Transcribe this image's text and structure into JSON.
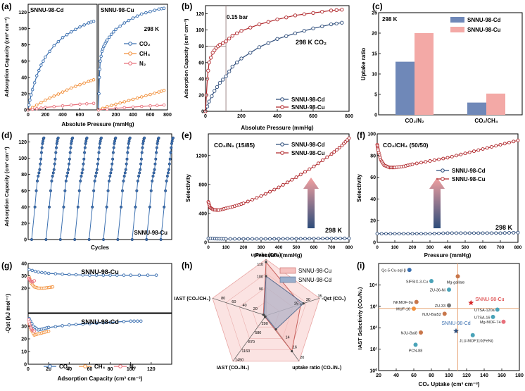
{
  "colors": {
    "cd": "#2e4d7b",
    "cu": "#b0272b",
    "ch4": "#f2913d",
    "n2": "#e8707b",
    "co2": "#3a6fb0",
    "cd_bar": "#6f88b8",
    "cu_bar": "#f3a9a6",
    "cd_fill": "#9aaecc",
    "cu_fill": "#f5c2c0",
    "vline": "#a08888",
    "arrow_top": "#f2a0a0",
    "arrow_bot": "#2e4d7b"
  },
  "chart_data": [
    {
      "id": "a",
      "type": "line",
      "panel_label": "(a)",
      "ylabel": "Adsorption Capacity (cm³ cm⁻³)",
      "xlabel": "Absolute Pressure (mmHg)",
      "temp": "298 K",
      "subplots": [
        {
          "title": "SNNU-98-Cd",
          "xlim": [
            0,
            800
          ],
          "ylim": [
            0,
            130
          ],
          "xticks": [
            0,
            200,
            400,
            600
          ],
          "yticks": [
            0,
            20,
            40,
            60,
            80,
            100,
            120
          ],
          "series": [
            {
              "name": "CO₂",
              "k": "co2",
              "x": [
                0,
                20,
                50,
                100,
                150,
                200,
                300,
                400,
                500,
                600,
                700,
                760
              ],
              "y": [
                0,
                12,
                25,
                42,
                55,
                65,
                79,
                89,
                96,
                102,
                107,
                109
              ]
            },
            {
              "name": "CH₄",
              "k": "ch4",
              "x": [
                0,
                100,
                200,
                300,
                400,
                500,
                600,
                700,
                760
              ],
              "y": [
                0,
                6,
                12,
                17,
                22,
                27,
                31,
                35,
                37
              ]
            },
            {
              "name": "N₂",
              "k": "n2",
              "x": [
                0,
                100,
                200,
                400,
                600,
                760
              ],
              "y": [
                0,
                1.5,
                3,
                5,
                7,
                8
              ]
            }
          ]
        },
        {
          "title": "SNNU-98-Cu",
          "xlim": [
            0,
            800
          ],
          "ylim": [
            0,
            130
          ],
          "xticks": [
            0,
            200,
            400,
            600,
            800
          ],
          "yticks": [],
          "series": [
            {
              "name": "CO₂",
              "k": "co2",
              "x": [
                0,
                10,
                20,
                40,
                60,
                80,
                100,
                150,
                200,
                300,
                400,
                500,
                600,
                700,
                760
              ],
              "y": [
                0,
                40,
                60,
                72,
                78,
                82,
                86,
                93,
                99,
                107,
                113,
                118,
                121,
                124,
                125
              ]
            },
            {
              "name": "CH₄",
              "k": "ch4",
              "x": [
                0,
                100,
                200,
                300,
                400,
                500,
                600,
                700,
                760
              ],
              "y": [
                0,
                4,
                7,
                10,
                13,
                16,
                19,
                22,
                24
              ]
            },
            {
              "name": "N₂",
              "k": "n2",
              "x": [
                0,
                200,
                400,
                600,
                760
              ],
              "y": [
                0,
                2,
                3.5,
                5,
                6
              ]
            }
          ]
        }
      ],
      "legend": [
        "CO₂",
        "CH₄",
        "N₂"
      ]
    },
    {
      "id": "b",
      "type": "line",
      "panel_label": "(b)",
      "ylabel": "Adsorption Capacity (cm³ cm⁻³)",
      "xlabel": "Absolute Pressure (mmHg)",
      "xlim": [
        0,
        800
      ],
      "ylim": [
        0,
        130
      ],
      "xticks": [
        0,
        200,
        400,
        600,
        800
      ],
      "yticks": [
        0,
        20,
        40,
        60,
        80,
        100,
        120
      ],
      "annotation": "0.15 bar",
      "temp": "298 K",
      "gas": "CO₂",
      "vline_x": 114,
      "hline_y": 80,
      "series": [
        {
          "name": "SNNU-98-Cd",
          "k": "cd",
          "x": [
            0,
            20,
            50,
            80,
            114,
            150,
            200,
            300,
            400,
            500,
            600,
            700,
            760
          ],
          "y": [
            0,
            12,
            25,
            35,
            43,
            55,
            65,
            79,
            89,
            96,
            102,
            107,
            109
          ]
        },
        {
          "name": "SNNU-98-Cu",
          "k": "cu",
          "x": [
            0,
            10,
            20,
            40,
            60,
            80,
            114,
            150,
            200,
            300,
            400,
            500,
            600,
            700,
            760
          ],
          "y": [
            0,
            40,
            60,
            72,
            78,
            82,
            86,
            93,
            99,
            107,
            113,
            118,
            121,
            124,
            125
          ]
        }
      ]
    },
    {
      "id": "c",
      "type": "bar",
      "panel_label": "(c)",
      "ylabel": "Uptake ratio",
      "temp": "298 K",
      "categories": [
        "CO₂/N₂",
        "CO₂/CH₄"
      ],
      "ylim": [
        0,
        25
      ],
      "yticks": [
        0,
        5,
        10,
        15,
        20,
        25
      ],
      "series": [
        {
          "name": "SNNU-98-Cd",
          "k": "cd_bar",
          "values": [
            13,
            3
          ]
        },
        {
          "name": "SNNU-98-Cu",
          "k": "cu_bar",
          "values": [
            20,
            5.2
          ]
        }
      ]
    },
    {
      "id": "d",
      "type": "line",
      "panel_label": "(d)",
      "ylabel": "Adsorption Capacity (cm³ cm⁻³)",
      "xlabel": "Cycles",
      "label": "SNNU-98-Cu",
      "ylim": [
        0,
        130
      ],
      "yticks": [
        0,
        20,
        40,
        60,
        80,
        100,
        120
      ],
      "cycles": 10,
      "cycle_profile": [
        0,
        40,
        60,
        72,
        78,
        82,
        86,
        93,
        99,
        107,
        113,
        118,
        121,
        124,
        125
      ]
    },
    {
      "id": "e",
      "type": "line",
      "panel_label": "(e)",
      "ylabel": "Selectivity",
      "xlabel": "Pressure (mmHg)",
      "title": "CO₂/N₂ (15/85)",
      "temp": "298 K",
      "xlim": [
        0,
        800
      ],
      "ylim": [
        0,
        1500
      ],
      "xticks": [
        0,
        100,
        200,
        300,
        400,
        500,
        600,
        700,
        800
      ],
      "yticks": [
        0,
        400,
        800,
        1200
      ],
      "series": [
        {
          "name": "SNNU-98-Cd",
          "k": "cd",
          "x": [
            0,
            50,
            100,
            200,
            300,
            400,
            500,
            600,
            700,
            800
          ],
          "y": [
            55,
            50,
            48,
            48,
            48,
            49,
            50,
            52,
            54,
            55
          ]
        },
        {
          "name": "SNNU-98-Cu",
          "k": "cu",
          "x": [
            0,
            10,
            30,
            60,
            100,
            150,
            200,
            300,
            400,
            500,
            600,
            700,
            760,
            800
          ],
          "y": [
            560,
            480,
            450,
            445,
            470,
            500,
            540,
            640,
            760,
            900,
            1050,
            1220,
            1340,
            1440
          ]
        }
      ]
    },
    {
      "id": "f",
      "type": "line",
      "panel_label": "(f)",
      "ylabel": "Selectivity",
      "xlabel": "Pressure (mmHg)",
      "title": "CO₂/CH₄ (50/50)",
      "temp": "298 K",
      "xlim": [
        0,
        800
      ],
      "ylim": [
        0,
        100
      ],
      "xticks": [
        0,
        100,
        200,
        300,
        400,
        500,
        600,
        700,
        800
      ],
      "yticks": [
        0,
        20,
        40,
        60,
        80,
        100
      ],
      "series": [
        {
          "name": "SNNU-98-Cd",
          "k": "cd",
          "x": [
            0,
            100,
            200,
            300,
            400,
            500,
            600,
            700,
            800
          ],
          "y": [
            8,
            8,
            8,
            8,
            8.5,
            8.5,
            8.5,
            8.5,
            9
          ]
        },
        {
          "name": "SNNU-98-Cu",
          "k": "cu",
          "x": [
            0,
            5,
            20,
            40,
            70,
            100,
            150,
            200,
            300,
            400,
            500,
            600,
            700,
            800
          ],
          "y": [
            90,
            85,
            76,
            71,
            69,
            69,
            70,
            72,
            75,
            78,
            82,
            86,
            90,
            94
          ]
        }
      ]
    },
    {
      "id": "g",
      "type": "line",
      "panel_label": "(g)",
      "ylabel": "-Qst (kJ mol⁻¹)",
      "xlabel": "Adsorption Capacity (cm³ cm⁻³)",
      "xlim": [
        0,
        140
      ],
      "ylim": [
        0,
        40
      ],
      "xticks": [
        0,
        20,
        40,
        60,
        80,
        100,
        120
      ],
      "yticks": [
        0,
        10,
        20,
        30,
        40
      ],
      "legend": [
        "CO₂",
        "CH₄",
        "N₂"
      ],
      "subplots": [
        {
          "title": "SNNU-98-Cu",
          "series": [
            {
              "name": "CO₂",
              "k": "co2",
              "x": [
                1,
                10,
                20,
                40,
                60,
                80,
                100,
                125
              ],
              "y": [
                35,
                33,
                32,
                31,
                30.5,
                30.5,
                30.5,
                30.5
              ]
            },
            {
              "name": "CH₄",
              "k": "ch4",
              "x": [
                1,
                3,
                6,
                10,
                15,
                20,
                24
              ],
              "y": [
                29,
                24,
                21,
                20,
                20,
                20.5,
                21
              ]
            },
            {
              "name": "N₂",
              "k": "n2",
              "x": [
                0.5,
                2,
                4,
                6
              ],
              "y": [
                28,
                26,
                25,
                26
              ]
            }
          ]
        },
        {
          "title": "SNNU-98-Cd",
          "series": [
            {
              "name": "CO₂",
              "k": "co2",
              "x": [
                1,
                5,
                10,
                15,
                20,
                40,
                60,
                80,
                100,
                110
              ],
              "y": [
                36,
                30,
                27,
                28,
                29,
                31,
                32,
                33,
                34,
                34
              ]
            },
            {
              "name": "CH₄",
              "k": "ch4",
              "x": [
                1,
                3,
                6,
                10,
                15,
                20
              ],
              "y": [
                32,
                27,
                23,
                24,
                25,
                26
              ]
            },
            {
              "name": "N₂",
              "k": "n2",
              "x": [
                0.5,
                2,
                4,
                6
              ],
              "y": [
                35,
                30,
                27,
                26
              ]
            }
          ]
        }
      ]
    },
    {
      "id": "h",
      "type": "radar",
      "panel_label": "(h)",
      "axes": [
        "uptake (CO₂)",
        "-Qst (CO₂)",
        "uptake ratio (CO₂/N₂)",
        "IAST (CO₂/N₂)",
        "IAST (CO₂/CH₄)"
      ],
      "scales": {
        "uptake": [
          90,
          100,
          110
        ],
        "qst": [
          25,
          30,
          35
        ],
        "ratio": [
          14,
          16,
          20
        ],
        "iast_n2": [
          290,
          580,
          870,
          1160,
          1450
        ],
        "iast_ch4": [
          20,
          40,
          60,
          80
        ]
      },
      "legend": [
        "SNNU-98-Cu",
        "SNNU-98-Cd"
      ],
      "series": [
        {
          "name": "SNNU-98-Cu",
          "k": "cu_fill",
          "values": [
            0.95,
            0.65,
            0.78,
            0.03,
            0.05
          ]
        },
        {
          "name": "SNNU-98-Cd",
          "k": "cd_fill",
          "values": [
            0.7,
            0.7,
            0.3,
            0.02,
            0.04
          ]
        }
      ]
    },
    {
      "id": "i",
      "type": "scatter",
      "panel_label": "(i)",
      "ylabel": "IAST Selectivity (CO₂/N₂)",
      "xlabel": "CO₂ Uptake (cm³ cm⁻³)",
      "xlim": [
        20,
        180
      ],
      "ylim_log": [
        1,
        100000
      ],
      "xticks": [
        20,
        40,
        60,
        80,
        100,
        120,
        140,
        160,
        180
      ],
      "yticks": [
        "10⁰",
        "10¹",
        "10²",
        "10³",
        "10⁴"
      ],
      "vline_x": 110,
      "hline_y": 800,
      "points": [
        {
          "label": "Qc-5-Cu-sql-β",
          "x": 55,
          "y": 50000,
          "c": "#3a6fb0"
        },
        {
          "label": "SIFSIX-3-Cu",
          "x": 80,
          "y": 15000,
          "c": "#4aa3b8"
        },
        {
          "label": "Mg-gallate",
          "x": 110,
          "y": 25000,
          "c": "#c8764a"
        },
        {
          "label": "ZU-36-Ni",
          "x": 100,
          "y": 6000,
          "c": "#4aa3b8"
        },
        {
          "label": "SNNU-98-Cu",
          "x": 125,
          "y": 1450,
          "c": "#d62728"
        },
        {
          "label": "NKMOF-9a",
          "x": 63,
          "y": 1600,
          "c": "#c8764a"
        },
        {
          "label": "ZU-33",
          "x": 100,
          "y": 1100,
          "c": "#7a7a7a"
        },
        {
          "label": "MUF-16",
          "x": 60,
          "y": 780,
          "c": "#f2913d"
        },
        {
          "label": "NJU-Bai52",
          "x": 95,
          "y": 450,
          "c": "#c8764a"
        },
        {
          "label": "SNNU-98-Cd",
          "x": 108,
          "y": 70,
          "c": "#2e4d7b"
        },
        {
          "label": "UTSA-120a",
          "x": 155,
          "y": 700,
          "c": "#4aa3b8"
        },
        {
          "label": "UTSA-16",
          "x": 150,
          "y": 320,
          "c": "#4aa3b8"
        },
        {
          "label": "Mg-MOF-74",
          "x": 162,
          "y": 190,
          "c": "#e8707b"
        },
        {
          "label": "NJU-Bai8",
          "x": 68,
          "y": 60,
          "c": "#c8764a"
        },
        {
          "label": "JLU-MOF110(FeNi)",
          "x": 127,
          "y": 45,
          "c": "#4aa3b8"
        },
        {
          "label": "PCN-88",
          "x": 62,
          "y": 16,
          "c": "#4aa3b8"
        }
      ]
    }
  ]
}
